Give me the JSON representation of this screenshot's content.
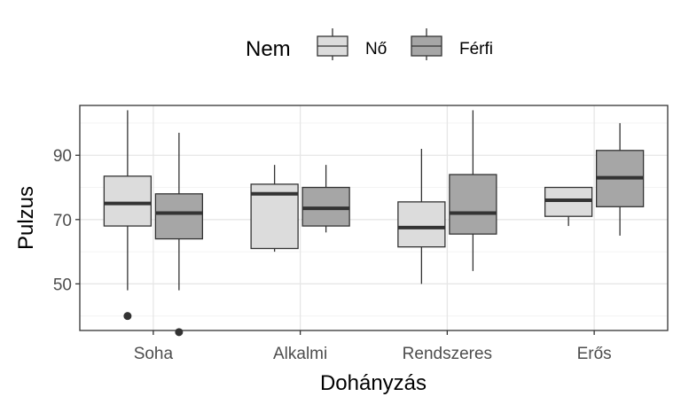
{
  "chart_data": {
    "type": "boxplot",
    "xlabel": "Dohányzás",
    "ylabel": "Pulzus",
    "categories": [
      "Soha",
      "Alkalmi",
      "Rendszeres",
      "Erős"
    ],
    "ylim": [
      35.5,
      105.5
    ],
    "yticks": [
      50,
      70,
      90
    ],
    "grid": true,
    "legend": {
      "title": "Nem",
      "position": "top",
      "entries": [
        "Nő",
        "Férfi"
      ]
    },
    "series": [
      {
        "name": "Nő",
        "color": "#dcdcdc",
        "boxes": [
          {
            "min": 48,
            "q1": 68,
            "median": 75,
            "q3": 83.5,
            "max": 104,
            "outliers": [
              40
            ]
          },
          {
            "min": 60,
            "q1": 61,
            "median": 78,
            "q3": 81,
            "max": 87,
            "outliers": []
          },
          {
            "min": 50,
            "q1": 61.5,
            "median": 67.5,
            "q3": 75.5,
            "max": 92,
            "outliers": []
          },
          {
            "min": 68,
            "q1": 71,
            "median": 76,
            "q3": 80,
            "max": 80,
            "outliers": []
          }
        ]
      },
      {
        "name": "Férfi",
        "color": "#a6a6a6",
        "boxes": [
          {
            "min": 48,
            "q1": 64,
            "median": 72,
            "q3": 78,
            "max": 97,
            "outliers": [
              35
            ]
          },
          {
            "min": 66,
            "q1": 68,
            "median": 73.5,
            "q3": 80,
            "max": 87,
            "outliers": []
          },
          {
            "min": 54,
            "q1": 65.5,
            "median": 72,
            "q3": 84,
            "max": 104,
            "outliers": []
          },
          {
            "min": 65,
            "q1": 74,
            "median": 83,
            "q3": 91.5,
            "max": 100,
            "outliers": []
          }
        ]
      }
    ]
  }
}
